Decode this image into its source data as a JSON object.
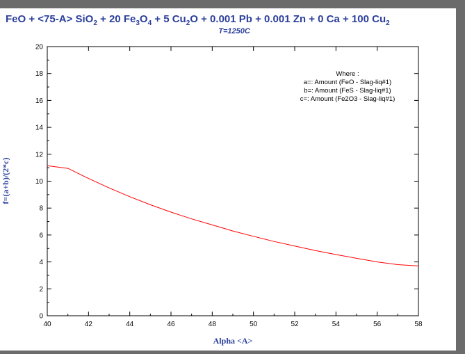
{
  "colors": {
    "background": "#6b6b6b",
    "panel": "#ffffff",
    "title": "#2b3f9c",
    "curve": "#ff0000",
    "axis": "#000000"
  },
  "chart_data": {
    "type": "line",
    "title": "FeO + <75-A> SiO2 + 20 Fe3O4 + 5 Cu2O + 0.001 Pb + 0.001 Zn + 0 Ca + 100 Cu2",
    "title_parts": [
      {
        "t": "FeO + <75-A> SiO",
        "sub": false
      },
      {
        "t": "2",
        "sub": true
      },
      {
        "t": " + 20 Fe",
        "sub": false
      },
      {
        "t": "3",
        "sub": true
      },
      {
        "t": "O",
        "sub": false
      },
      {
        "t": "4",
        "sub": true
      },
      {
        "t": " + 5 Cu",
        "sub": false
      },
      {
        "t": "2",
        "sub": true
      },
      {
        "t": "O + 0.001 Pb + 0.001 Zn + 0 Ca + 100 Cu",
        "sub": false
      },
      {
        "t": "2",
        "sub": true
      }
    ],
    "subtitle": "T=1250C",
    "xlabel": "Alpha <A>",
    "ylabel": "f=(a+b)/(2*c)",
    "xlim": [
      40,
      58
    ],
    "ylim": [
      0,
      20
    ],
    "xticks": [
      40,
      42,
      44,
      46,
      48,
      50,
      52,
      54,
      56,
      58
    ],
    "yticks": [
      0,
      2,
      4,
      6,
      8,
      10,
      12,
      14,
      16,
      18,
      20
    ],
    "grid": false,
    "legend": {
      "placement": "top-right",
      "lines": [
        "Where :",
        "a=: Amount   (FeO - Slag-liq#1)",
        "b=: Amount   (FeS - Slag-liq#1)",
        "c=: Amount   (Fe2O3 - Slag-liq#1)"
      ]
    },
    "series": [
      {
        "color": "#ff0000",
        "x": [
          40,
          41,
          42,
          43,
          44,
          45,
          46,
          47,
          48,
          49,
          50,
          51,
          52,
          53,
          54,
          55,
          56,
          57,
          58
        ],
        "y": [
          11.15,
          10.95,
          10.2,
          9.5,
          8.85,
          8.25,
          7.7,
          7.2,
          6.75,
          6.3,
          5.9,
          5.52,
          5.18,
          4.85,
          4.55,
          4.27,
          4.0,
          3.8,
          3.7
        ]
      }
    ]
  }
}
